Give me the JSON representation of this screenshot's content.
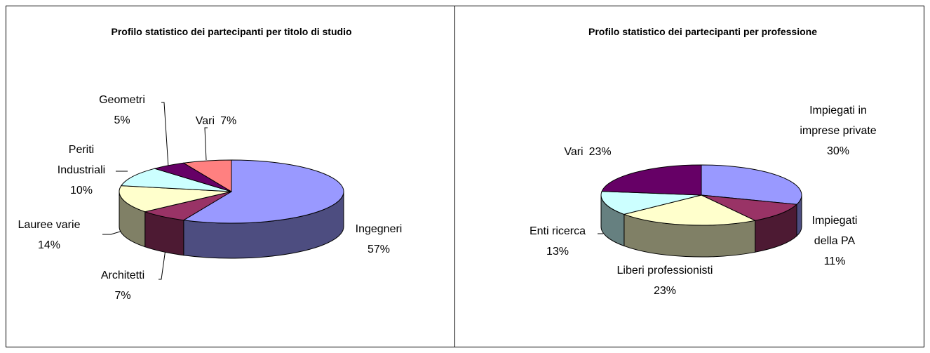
{
  "chart_data": [
    {
      "type": "pie",
      "title": "Profilo statistico dei partecipanti per titolo di studio",
      "categories": [
        "Ingegneri",
        "Architetti",
        "Lauree varie",
        "Periti Industriali",
        "Geometri",
        "Vari"
      ],
      "values": [
        57,
        7,
        14,
        10,
        5,
        7
      ],
      "value_labels": [
        "57%",
        "7%",
        "14%",
        "10%",
        "5%",
        "7%"
      ],
      "colors": [
        "#9999ff",
        "#993366",
        "#ffffcc",
        "#ccffff",
        "#660066",
        "#ff8080"
      ]
    },
    {
      "type": "pie",
      "title": "Profilo statistico dei partecipanti per professione",
      "categories": [
        "Impiegati in imprese private",
        "Impiegati della PA",
        "Liberi professionisti",
        "Enti ricerca",
        "Vari"
      ],
      "values": [
        30,
        11,
        23,
        13,
        23
      ],
      "value_labels": [
        "30%",
        "11%",
        "23%",
        "13%",
        "23%"
      ],
      "colors": [
        "#9999ff",
        "#993366",
        "#ffffcc",
        "#ccffff",
        "#660066"
      ]
    }
  ]
}
